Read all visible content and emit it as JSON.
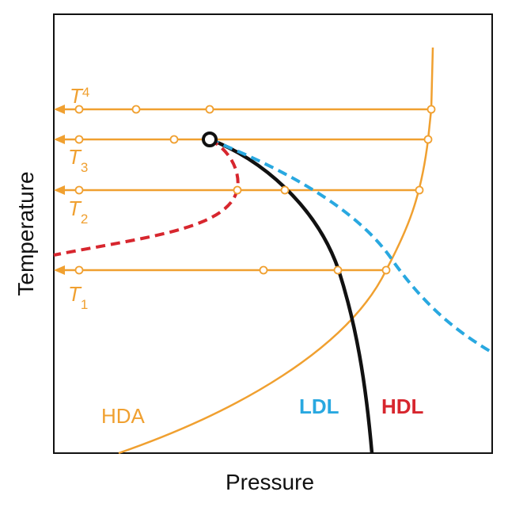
{
  "axes": {
    "x_label": "Pressure",
    "y_label": "Temperature"
  },
  "isotherms": [
    {
      "symbol": "T",
      "subscript": "4"
    },
    {
      "symbol": "T",
      "subscript": "3"
    },
    {
      "symbol": "T",
      "subscript": "2"
    },
    {
      "symbol": "T",
      "subscript": "1"
    }
  ],
  "regions": {
    "hda": "HDA",
    "ldl": "LDL",
    "hdl": "HDL"
  }
}
